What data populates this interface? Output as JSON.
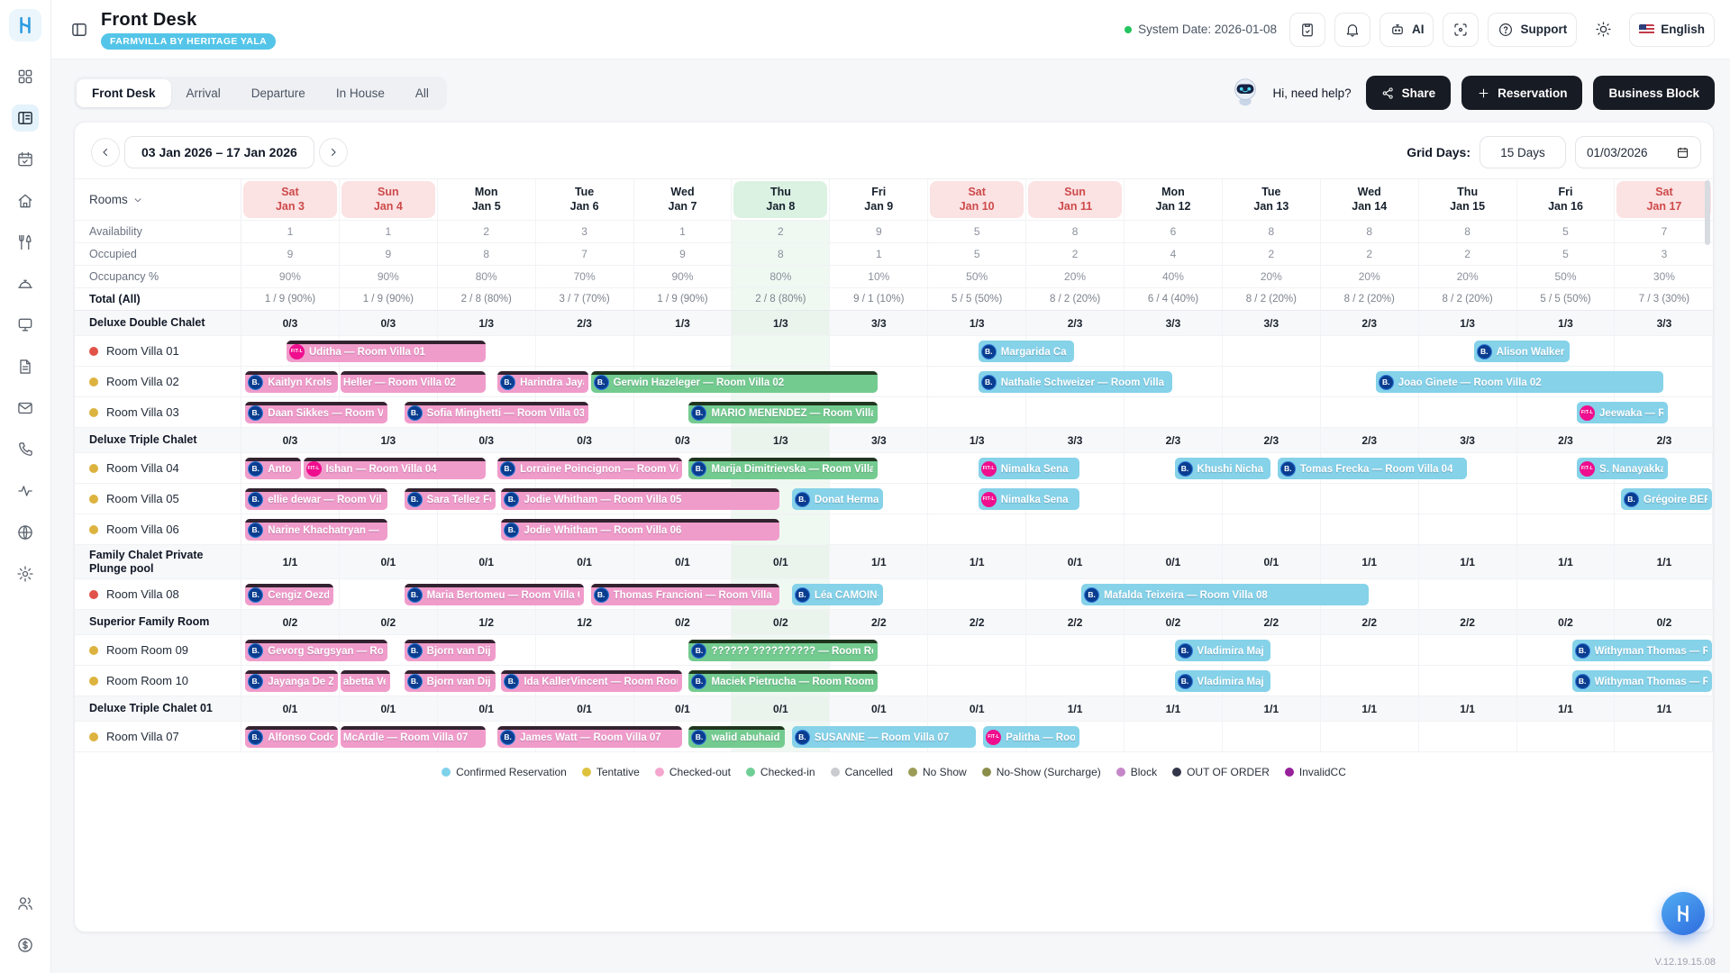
{
  "app": {
    "version": "V.12.19.15.08"
  },
  "sidebar": {
    "icons": [
      "dashboard",
      "front-desk",
      "calendar",
      "home",
      "restaurant",
      "concierge",
      "terminal",
      "documents",
      "mail",
      "phone",
      "activity",
      "globe",
      "settings",
      "users",
      "billing"
    ],
    "active": "front-desk"
  },
  "header": {
    "title": "Front Desk",
    "property_badge": "FARMVILLA BY HERITAGE YALA",
    "system_date": "System Date: 2026-01-08",
    "ai_label": "AI",
    "support_label": "Support",
    "language": "English"
  },
  "toolbar": {
    "tabs": [
      "Front Desk",
      "Arrival",
      "Departure",
      "In House",
      "All"
    ],
    "active_tab": "Front Desk",
    "help_text": "Hi, need help?",
    "share_label": "Share",
    "reservation_label": "Reservation",
    "business_block_label": "Business Block"
  },
  "controls": {
    "date_range": "03 Jan 2026 – 17 Jan 2026",
    "grid_days_label": "Grid Days:",
    "grid_days_value": "15 Days",
    "grid_start_date": "01/03/2026"
  },
  "colors": {
    "accent": "#54C5E8",
    "room_dots": {
      "red": "#E15248",
      "yellow": "#DDB33F"
    },
    "bar_types": {
      "confirmed": {
        "fill": "#85D2E9",
        "stripe": null
      },
      "checked_out": {
        "fill": "#F09CCB",
        "stripe": "#33222F"
      },
      "checked_in": {
        "fill": "#74CB90",
        "stripe": "#20361F"
      }
    }
  },
  "badges": {
    "bcom": {
      "label": "B.",
      "bg": "#0A3D8F"
    },
    "fit": {
      "label": "FIT-L",
      "bg": "#EF0E8E"
    }
  },
  "grid": {
    "rooms_header": "Rooms",
    "days": [
      {
        "dow": "Sat",
        "date": "Jan 3",
        "type": "weekend"
      },
      {
        "dow": "Sun",
        "date": "Jan 4",
        "type": "weekend"
      },
      {
        "dow": "Mon",
        "date": "Jan 5",
        "type": ""
      },
      {
        "dow": "Tue",
        "date": "Jan 6",
        "type": ""
      },
      {
        "dow": "Wed",
        "date": "Jan 7",
        "type": ""
      },
      {
        "dow": "Thu",
        "date": "Jan 8",
        "type": "today"
      },
      {
        "dow": "Fri",
        "date": "Jan 9",
        "type": ""
      },
      {
        "dow": "Sat",
        "date": "Jan 10",
        "type": "weekend"
      },
      {
        "dow": "Sun",
        "date": "Jan 11",
        "type": "weekend"
      },
      {
        "dow": "Mon",
        "date": "Jan 12",
        "type": ""
      },
      {
        "dow": "Tue",
        "date": "Jan 13",
        "type": ""
      },
      {
        "dow": "Wed",
        "date": "Jan 14",
        "type": ""
      },
      {
        "dow": "Thu",
        "date": "Jan 15",
        "type": ""
      },
      {
        "dow": "Fri",
        "date": "Jan 16",
        "type": ""
      },
      {
        "dow": "Sat",
        "date": "Jan 17",
        "type": "weekend"
      }
    ],
    "stats": [
      {
        "label": "Availability",
        "values": [
          "1",
          "1",
          "2",
          "3",
          "1",
          "2",
          "9",
          "5",
          "8",
          "6",
          "8",
          "8",
          "8",
          "5",
          "7"
        ]
      },
      {
        "label": "Occupied",
        "values": [
          "9",
          "9",
          "8",
          "7",
          "9",
          "8",
          "1",
          "5",
          "2",
          "4",
          "2",
          "2",
          "2",
          "5",
          "3"
        ]
      },
      {
        "label": "Occupancy %",
        "values": [
          "90%",
          "90%",
          "80%",
          "70%",
          "90%",
          "80%",
          "10%",
          "50%",
          "20%",
          "40%",
          "20%",
          "20%",
          "20%",
          "50%",
          "30%"
        ]
      },
      {
        "label": "Total (All)",
        "values": [
          "1 / 9 (90%)",
          "1 / 9 (90%)",
          "2 / 8 (80%)",
          "3 / 7 (70%)",
          "1 / 9 (90%)",
          "2 / 8 (80%)",
          "9 / 1 (10%)",
          "5 / 5 (50%)",
          "8 / 2 (20%)",
          "6 / 4 (40%)",
          "8 / 2 (20%)",
          "8 / 2 (20%)",
          "8 / 2 (20%)",
          "5 / 5 (50%)",
          "7 / 3 (30%)"
        ]
      }
    ],
    "sections": [
      {
        "name": "Deluxe Double Chalet",
        "values": [
          "0/3",
          "0/3",
          "1/3",
          "2/3",
          "1/3",
          "1/3",
          "3/3",
          "1/3",
          "2/3",
          "3/3",
          "3/3",
          "2/3",
          "1/3",
          "1/3",
          "3/3"
        ],
        "rooms": [
          {
            "name": "Room Villa 01",
            "status": "red",
            "bars": [
              {
                "s": 0.45,
                "e": 2.5,
                "type": "checked_out",
                "badge": "fit",
                "label": "Uditha — Room Villa 01"
              },
              {
                "s": 7.5,
                "e": 8.5,
                "type": "confirmed",
                "badge": "bcom",
                "label": "Margarida Ca"
              },
              {
                "s": 12.55,
                "e": 13.55,
                "type": "confirmed",
                "badge": "bcom",
                "label": "Alison Walker"
              }
            ]
          },
          {
            "name": "Room Villa 02",
            "status": "yellow",
            "bars": [
              {
                "s": 0.03,
                "e": 1.0,
                "type": "checked_out",
                "badge": "bcom",
                "label": "Kaitlyn Krols -"
              },
              {
                "s": 1.0,
                "e": 2.5,
                "type": "checked_out",
                "badge": null,
                "label": "Heller — Room Villa 02"
              },
              {
                "s": 2.6,
                "e": 3.55,
                "type": "checked_out",
                "badge": "bcom",
                "label": "Harindra Jaya"
              },
              {
                "s": 3.55,
                "e": 6.5,
                "type": "checked_in",
                "badge": "bcom",
                "label": "Gerwin Hazeleger — Room Villa 02"
              },
              {
                "s": 7.5,
                "e": 9.5,
                "type": "confirmed",
                "badge": "bcom",
                "label": "Nathalie Schweizer — Room Villa"
              },
              {
                "s": 11.55,
                "e": 14.5,
                "type": "confirmed",
                "badge": "bcom",
                "label": "Joao Ginete — Room Villa 02"
              }
            ]
          },
          {
            "name": "Room Villa 03",
            "status": "yellow",
            "bars": [
              {
                "s": 0.03,
                "e": 1.5,
                "type": "checked_out",
                "badge": "bcom",
                "label": "Daan Sikkes — Room V"
              },
              {
                "s": 1.65,
                "e": 3.55,
                "type": "checked_out",
                "badge": "bcom",
                "label": "Sofia Minghetti — Room Villa 03"
              },
              {
                "s": 4.55,
                "e": 6.5,
                "type": "checked_in",
                "badge": "bcom",
                "label": "MARIO MENENDEZ — Room Villa"
              },
              {
                "s": 13.6,
                "e": 14.55,
                "type": "confirmed",
                "badge": "fit",
                "label": "Jeewaka — R"
              }
            ]
          }
        ]
      },
      {
        "name": "Deluxe Triple Chalet",
        "values": [
          "0/3",
          "1/3",
          "0/3",
          "0/3",
          "0/3",
          "1/3",
          "3/3",
          "1/3",
          "3/3",
          "2/3",
          "2/3",
          "2/3",
          "3/3",
          "2/3",
          "2/3"
        ],
        "rooms": [
          {
            "name": "Room Villa 04",
            "status": "yellow",
            "bars": [
              {
                "s": 0.03,
                "e": 0.62,
                "type": "checked_out",
                "badge": "bcom",
                "label": "Anto"
              },
              {
                "s": 0.62,
                "e": 2.5,
                "type": "checked_out",
                "badge": "fit",
                "label": "Ishan — Room Villa 04"
              },
              {
                "s": 2.6,
                "e": 4.5,
                "type": "checked_out",
                "badge": "bcom",
                "label": "Lorraine Poincignon — Room Vill"
              },
              {
                "s": 4.55,
                "e": 6.5,
                "type": "checked_in",
                "badge": "bcom",
                "label": "Marija Dimitrievska — Room Villa"
              },
              {
                "s": 7.5,
                "e": 8.55,
                "type": "confirmed",
                "badge": "fit",
                "label": "Nimalka Sena"
              },
              {
                "s": 9.5,
                "e": 10.5,
                "type": "confirmed",
                "badge": "bcom",
                "label": "Khushi Nicha"
              },
              {
                "s": 10.55,
                "e": 12.5,
                "type": "confirmed",
                "badge": "bcom",
                "label": "Tomas Frecka — Room Villa 04"
              },
              {
                "s": 13.6,
                "e": 14.55,
                "type": "confirmed",
                "badge": "fit",
                "label": "S. Nanayakka"
              }
            ]
          },
          {
            "name": "Room Villa 05",
            "status": "yellow",
            "bars": [
              {
                "s": 0.03,
                "e": 1.5,
                "type": "checked_out",
                "badge": "bcom",
                "label": "ellie dewar — Room Vil"
              },
              {
                "s": 1.65,
                "e": 2.6,
                "type": "checked_out",
                "badge": "bcom",
                "label": "Sara Tellez Fe"
              },
              {
                "s": 2.64,
                "e": 5.5,
                "type": "checked_out",
                "badge": "bcom",
                "label": "Jodie Whitham — Room Villa 05"
              },
              {
                "s": 5.6,
                "e": 6.55,
                "type": "confirmed",
                "badge": "bcom",
                "label": "Donat Herma"
              },
              {
                "s": 7.5,
                "e": 8.55,
                "type": "confirmed",
                "badge": "fit",
                "label": "Nimalka Sena"
              },
              {
                "s": 14.05,
                "e": 15.0,
                "type": "confirmed",
                "badge": "bcom",
                "label": "Grégoire BER"
              }
            ]
          },
          {
            "name": "Room Villa 06",
            "status": "yellow",
            "bars": [
              {
                "s": 0.03,
                "e": 1.5,
                "type": "checked_out",
                "badge": "bcom",
                "label": "Narine Khachatryan —"
              },
              {
                "s": 2.64,
                "e": 5.5,
                "type": "checked_out",
                "badge": "bcom",
                "label": "Jodie Whitham — Room Villa 06"
              }
            ]
          }
        ]
      },
      {
        "name": "Family Chalet Private Plunge pool",
        "values": [
          "1/1",
          "0/1",
          "0/1",
          "0/1",
          "0/1",
          "0/1",
          "1/1",
          "1/1",
          "0/1",
          "0/1",
          "0/1",
          "1/1",
          "1/1",
          "1/1",
          "1/1"
        ],
        "tall": true,
        "rooms": [
          {
            "name": "Room Villa 08",
            "status": "red",
            "bars": [
              {
                "s": 0.03,
                "e": 0.95,
                "type": "checked_out",
                "badge": "bcom",
                "label": "Cengiz Oezde"
              },
              {
                "s": 1.65,
                "e": 3.5,
                "type": "checked_out",
                "badge": "bcom",
                "label": "Maria Bertomeu — Room Villa 08"
              },
              {
                "s": 3.55,
                "e": 5.5,
                "type": "checked_out",
                "badge": "bcom",
                "label": "Thomas Francioni — Room Villa"
              },
              {
                "s": 5.6,
                "e": 6.55,
                "type": "confirmed",
                "badge": "bcom",
                "label": "Léa CAMOIN-"
              },
              {
                "s": 8.55,
                "e": 11.5,
                "type": "confirmed",
                "badge": "bcom",
                "label": "Mafalda Teixeira — Room Villa 08"
              }
            ]
          }
        ]
      },
      {
        "name": "Superior Family Room",
        "values": [
          "0/2",
          "0/2",
          "1/2",
          "1/2",
          "0/2",
          "0/2",
          "2/2",
          "2/2",
          "2/2",
          "0/2",
          "2/2",
          "2/2",
          "2/2",
          "0/2",
          "0/2"
        ],
        "rooms": [
          {
            "name": "Room Room 09",
            "status": "yellow",
            "bars": [
              {
                "s": 0.03,
                "e": 1.5,
                "type": "checked_out",
                "badge": "bcom",
                "label": "Gevorg Sargsyan — Ro"
              },
              {
                "s": 1.65,
                "e": 2.6,
                "type": "checked_out",
                "badge": "bcom",
                "label": "Bjorn van Dijk"
              },
              {
                "s": 4.55,
                "e": 6.5,
                "type": "checked_in",
                "badge": "bcom",
                "label": "?????? ?????????? — Room Roo"
              },
              {
                "s": 9.5,
                "e": 10.5,
                "type": "confirmed",
                "badge": "bcom",
                "label": "Vladimira Maj"
              },
              {
                "s": 13.55,
                "e": 15.0,
                "type": "confirmed",
                "badge": "bcom",
                "label": "Withyman Thomas — R"
              }
            ]
          },
          {
            "name": "Room Room 10",
            "status": "yellow",
            "bars": [
              {
                "s": 0.03,
                "e": 1.0,
                "type": "checked_out",
                "badge": "bcom",
                "label": "Jayanga De Z"
              },
              {
                "s": 1.0,
                "e": 1.53,
                "type": "checked_out",
                "badge": null,
                "label": "abetta Ven"
              },
              {
                "s": 1.65,
                "e": 2.6,
                "type": "checked_out",
                "badge": "bcom",
                "label": "Bjorn van Dijk"
              },
              {
                "s": 2.64,
                "e": 4.5,
                "type": "checked_out",
                "badge": "bcom",
                "label": "Ida KallerVincent — Room Room"
              },
              {
                "s": 4.55,
                "e": 6.5,
                "type": "checked_in",
                "badge": "bcom",
                "label": "Maciek Pietrucha — Room Room"
              },
              {
                "s": 9.5,
                "e": 10.5,
                "type": "confirmed",
                "badge": "bcom",
                "label": "Vladimira Maj"
              },
              {
                "s": 13.55,
                "e": 15.0,
                "type": "confirmed",
                "badge": "bcom",
                "label": "Withyman Thomas — R"
              }
            ]
          }
        ]
      },
      {
        "name": "Deluxe Triple Chalet 01",
        "values": [
          "0/1",
          "0/1",
          "0/1",
          "0/1",
          "0/1",
          "0/1",
          "0/1",
          "0/1",
          "1/1",
          "1/1",
          "1/1",
          "1/1",
          "1/1",
          "1/1",
          "1/1"
        ],
        "rooms": [
          {
            "name": "Room Villa 07",
            "status": "yellow",
            "bars": [
              {
                "s": 0.03,
                "e": 1.0,
                "type": "checked_out",
                "badge": "bcom",
                "label": "Alfonso Codo"
              },
              {
                "s": 1.0,
                "e": 2.5,
                "type": "checked_out",
                "badge": null,
                "label": "McArdle — Room Villa 07"
              },
              {
                "s": 2.6,
                "e": 4.5,
                "type": "checked_out",
                "badge": "bcom",
                "label": "James Watt — Room Villa 07"
              },
              {
                "s": 4.55,
                "e": 5.55,
                "type": "checked_in",
                "badge": "bcom",
                "label": "walid abuhaid"
              },
              {
                "s": 5.6,
                "e": 7.5,
                "type": "confirmed",
                "badge": "bcom",
                "label": "SUSANNE — Room Villa 07"
              },
              {
                "s": 7.55,
                "e": 8.55,
                "type": "confirmed",
                "badge": "fit",
                "label": "Palitha — Roo"
              }
            ]
          }
        ]
      }
    ],
    "legend": [
      {
        "label": "Confirmed Reservation",
        "color": "#7ED2EA"
      },
      {
        "label": "Tentative",
        "color": "#DEC23D"
      },
      {
        "label": "Checked-out",
        "color": "#F5A6CF"
      },
      {
        "label": "Checked-in",
        "color": "#6FCE95"
      },
      {
        "label": "Cancelled",
        "color": "#C9CBD1"
      },
      {
        "label": "No Show",
        "color": "#9B9D57"
      },
      {
        "label": "No-Show (Surcharge)",
        "color": "#8B8E4B"
      },
      {
        "label": "Block",
        "color": "#C687C9"
      },
      {
        "label": "OUT OF ORDER",
        "color": "#333549"
      },
      {
        "label": "InvalidCC",
        "color": "#97209B"
      }
    ]
  }
}
